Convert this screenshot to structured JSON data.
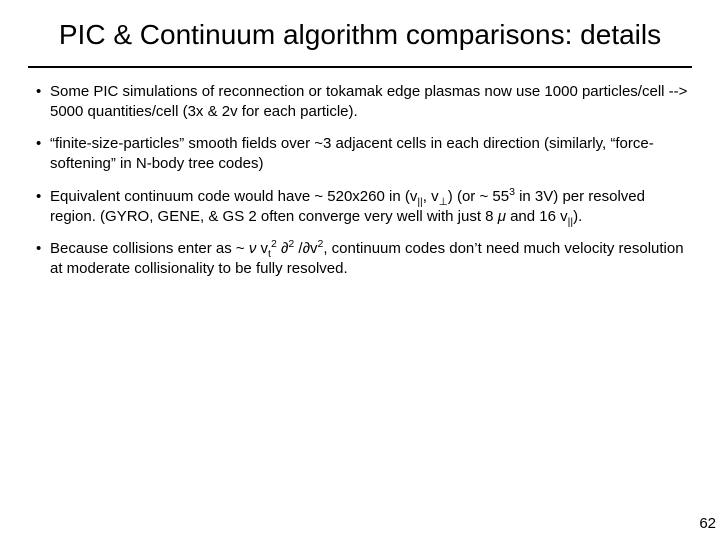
{
  "title": "PIC & Continuum algorithm comparisons: details",
  "bullets": [
    "Some PIC simulations of reconnection or tokamak edge plasmas now use 1000 particles/cell --> 5000 quantities/cell (3x & 2v for each particle).",
    "“finite-size-particles” smooth fields over ~3 adjacent cells in each direction (similarly, “force-softening” in N-body tree codes)",
    "Equivalent continuum code would have ~ 520x260 in (v∥, v⊥) (or ~ 55³ in 3V) per resolved region.  (GYRO, GENE, & GS2 often converge very well with just 8 μ and 16 v∥).",
    "Because collisions enter as ~ ν vₜ² ∂²/∂v², continuum codes don’t need much velocity resolution at moderate collisionality to be fully resolved."
  ],
  "bullets_html": [
    "Some PIC simulations of reconnection or tokamak edge plasmas now use 1000 particles/cell --> 5000 quantities/cell (3x & 2v for each particle).",
    "“finite-size-particles” smooth fields over ~3 adjacent cells in each direction (similarly, “force-softening” in N-body tree codes)",
    "Equivalent continuum code would have ~ 520x260 in (v<sub>||</sub>, v<sub>⊥</sub>) (or ~ 55<sup>3</sup> in 3V) per resolved region.  (GYRO, GENE, & GS&nbsp;2 often converge very well with just 8 <span class=\"it\">μ</span> and 16 v<sub>||</sub>).",
    "Because collisions enter as ~ <span class=\"it\">ν</span> v<sub>t</sub><sup>2</sup> ∂<sup>2</sup>&nbsp;/∂v<sup>2</sup>, continuum codes don’t need much velocity resolution at moderate collisionality to be fully resolved."
  ],
  "page_number": "62",
  "style": {
    "background_color": "#ffffff",
    "title_fontsize": 28,
    "body_fontsize": 15,
    "text_color": "#000000",
    "rule_color": "#000000",
    "font_family": "Arial"
  }
}
